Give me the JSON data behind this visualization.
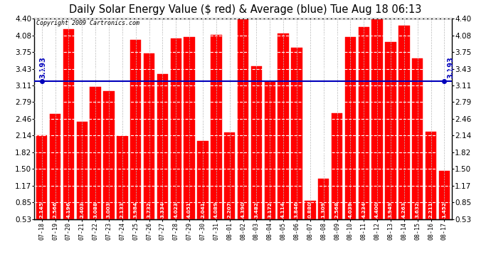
{
  "title": "Daily Solar Energy Value ($ red) & Average (blue) Tue Aug 18 06:13",
  "copyright": "Copyright 2009 Cartronics.com",
  "average": 3.193,
  "average_label": "3.193",
  "bar_color": "#FF0000",
  "avg_line_color": "#0000BB",
  "background_color": "#FFFFFF",
  "plot_bg_color": "#FFFFFF",
  "categories": [
    "07-18",
    "07-19",
    "07-20",
    "07-21",
    "07-22",
    "07-23",
    "07-24",
    "07-25",
    "07-26",
    "07-27",
    "07-28",
    "07-29",
    "07-30",
    "07-31",
    "08-01",
    "08-02",
    "08-03",
    "08-04",
    "08-05",
    "08-06",
    "08-07",
    "08-08",
    "08-09",
    "08-10",
    "08-11",
    "08-12",
    "08-13",
    "08-14",
    "08-15",
    "08-16",
    "08-17"
  ],
  "values": [
    2.145,
    2.566,
    4.196,
    2.403,
    3.088,
    3.003,
    2.133,
    3.984,
    3.732,
    3.334,
    4.023,
    4.051,
    2.041,
    4.089,
    2.207,
    4.39,
    3.482,
    3.172,
    4.114,
    3.846,
    0.88,
    1.309,
    2.568,
    4.039,
    4.234,
    4.4,
    3.949,
    4.263,
    3.632,
    2.211,
    1.452
  ],
  "ylim": [
    0.53,
    4.4
  ],
  "yticks": [
    0.53,
    0.85,
    1.17,
    1.5,
    1.82,
    2.14,
    2.46,
    2.79,
    3.11,
    3.43,
    3.75,
    4.08,
    4.4
  ],
  "value_fontsize": 5.2,
  "xlabel_fontsize": 6.0,
  "ylabel_fontsize": 7.5,
  "title_fontsize": 10.5
}
